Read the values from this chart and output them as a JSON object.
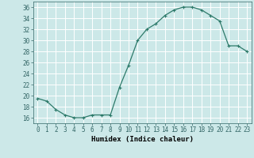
{
  "x": [
    0,
    1,
    2,
    3,
    4,
    5,
    6,
    7,
    8,
    9,
    10,
    11,
    12,
    13,
    14,
    15,
    16,
    17,
    18,
    19,
    20,
    21,
    22,
    23
  ],
  "y": [
    19.5,
    19,
    17.5,
    16.5,
    16,
    16,
    16.5,
    16.5,
    16.5,
    21.5,
    25.5,
    30,
    32,
    33,
    34.5,
    35.5,
    36,
    36,
    35.5,
    34.5,
    33.5,
    29,
    29,
    28
  ],
  "line_color": "#2d7a6a",
  "marker": "+",
  "bg_color": "#cce8e8",
  "grid_color": "#b0d8d8",
  "xlabel": "Humidex (Indice chaleur)",
  "ylim": [
    15,
    37
  ],
  "xlim": [
    -0.5,
    23.5
  ],
  "yticks": [
    16,
    18,
    20,
    22,
    24,
    26,
    28,
    30,
    32,
    34,
    36
  ],
  "xtick_labels": [
    "0",
    "1",
    "2",
    "3",
    "4",
    "5",
    "6",
    "7",
    "8",
    "9",
    "10",
    "11",
    "12",
    "13",
    "14",
    "15",
    "16",
    "17",
    "18",
    "19",
    "20",
    "21",
    "22",
    "23"
  ],
  "label_fontsize": 6.5,
  "tick_fontsize": 5.5
}
